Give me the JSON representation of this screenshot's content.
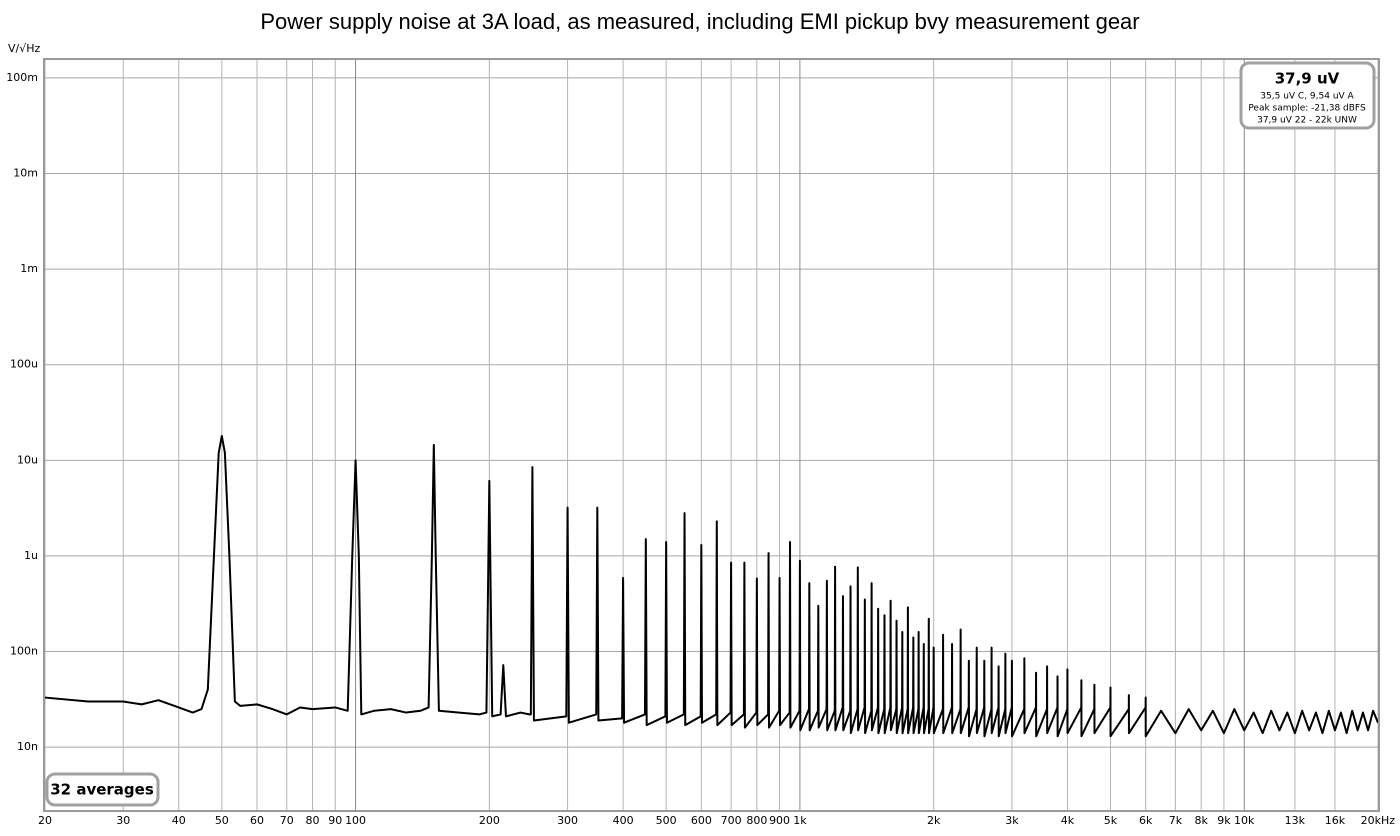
{
  "chart_data": {
    "type": "line",
    "title": "Power supply noise at 3A load, as measured, including EMI pickup bvy measurement gear",
    "y_unit": "V/√Hz",
    "xscale": "log",
    "yscale": "log",
    "grid": true,
    "xlim": [
      20,
      20000
    ],
    "ylim": [
      2.2e-09,
      0.154
    ],
    "xticks": [
      20,
      30,
      40,
      50,
      60,
      70,
      80,
      90,
      100,
      200,
      300,
      400,
      500,
      600,
      700,
      800,
      900,
      {
        "value": 1000,
        "label": "1k"
      },
      {
        "value": 2000,
        "label": "2k"
      },
      {
        "value": 3000,
        "label": "3k"
      },
      {
        "value": 4000,
        "label": "4k"
      },
      {
        "value": 5000,
        "label": "5k"
      },
      {
        "value": 6000,
        "label": "6k"
      },
      {
        "value": 7000,
        "label": "7k"
      },
      {
        "value": 8000,
        "label": "8k"
      },
      {
        "value": 9000,
        "label": "9k"
      },
      {
        "value": 10000,
        "label": "10k"
      },
      {
        "value": 13000,
        "label": "13k"
      },
      {
        "value": 16000,
        "label": "16k"
      },
      {
        "value": 20000,
        "label": "20kHz"
      }
    ],
    "yticks": [
      {
        "value": 1e-08,
        "label": "10n"
      },
      {
        "value": 1e-07,
        "label": "100n"
      },
      {
        "value": 1e-06,
        "label": "1u"
      },
      {
        "value": 1e-05,
        "label": "10u"
      },
      {
        "value": 0.0001,
        "label": "100u"
      },
      {
        "value": 0.001,
        "label": "1m"
      },
      {
        "value": 0.01,
        "label": "10m"
      },
      {
        "value": 0.1,
        "label": "100m"
      }
    ],
    "info_box": {
      "title": "37,9 uV",
      "lines": [
        "35,5 uV C, 9,54 uV A",
        "Peak sample: -21,38 dBFS",
        "37,9 uV 22 - 22k UNW"
      ]
    },
    "averages_label": "32 averages",
    "series": [
      {
        "color": "#000000",
        "x": [
          20,
          25,
          30,
          33,
          36,
          40,
          43,
          45,
          46.5,
          48,
          49.2,
          50,
          50.8,
          52,
          53.5,
          55,
          60,
          65,
          70,
          75,
          80,
          90,
          96,
          98.3,
          100,
          101.7,
          103,
          110,
          120,
          130,
          140,
          146,
          148.5,
          150,
          151.5,
          154,
          170,
          190,
          197,
          198.7,
          200,
          201.3,
          203,
          212,
          215,
          218,
          235,
          246,
          248,
          250,
          252,
          298,
          300,
          302,
          348,
          350,
          352,
          398,
          400,
          402,
          448,
          450,
          452,
          498,
          500,
          502,
          548,
          550,
          552,
          598,
          600,
          602,
          648,
          650,
          652,
          698,
          700,
          702,
          748,
          750,
          752,
          798,
          800,
          802,
          848,
          850,
          852,
          898,
          900,
          902,
          948,
          950,
          952,
          998,
          1000,
          1002,
          1048,
          1050,
          1052,
          1098,
          1100,
          1102,
          1148,
          1150,
          1152,
          1198,
          1200,
          1202,
          1248,
          1250,
          1252,
          1298,
          1300,
          1302,
          1348,
          1350,
          1352,
          1398,
          1400,
          1402,
          1448,
          1450,
          1452,
          1498,
          1500,
          1502,
          1548,
          1550,
          1552,
          1598,
          1600,
          1602,
          1648,
          1650,
          1652,
          1698,
          1700,
          1702,
          1748,
          1750,
          1752,
          1798,
          1800,
          1802,
          1848,
          1850,
          1852,
          1898,
          1900,
          1902,
          1948,
          1950,
          1952,
          1998,
          2000,
          2002,
          2098,
          2100,
          2102,
          2198,
          2200,
          2202,
          2298,
          2300,
          2302,
          2398,
          2400,
          2402,
          2498,
          2500,
          2502,
          2598,
          2600,
          2602,
          2698,
          2700,
          2702,
          2798,
          2800,
          2802,
          2898,
          2900,
          2902,
          2998,
          3000,
          3002,
          3198,
          3200,
          3202,
          3398,
          3400,
          3402,
          3598,
          3600,
          3602,
          3798,
          3800,
          3802,
          3998,
          4000,
          4002,
          4298,
          4300,
          4302,
          4598,
          4600,
          4602,
          4998,
          5000,
          5002,
          5498,
          5500,
          5502,
          5998,
          6000,
          6002,
          6500,
          7000,
          7500,
          8000,
          8500,
          9000,
          9500,
          10000,
          10500,
          11000,
          11500,
          12000,
          12500,
          13000,
          13500,
          14000,
          14500,
          15000,
          15500,
          16000,
          16500,
          17000,
          17500,
          18000,
          18500,
          19000,
          19500,
          20000
        ],
        "values": [
          3.3e-08,
          3e-08,
          3e-08,
          2.8e-08,
          3.1e-08,
          2.6e-08,
          2.3e-08,
          2.5e-08,
          4e-08,
          1e-06,
          1.2e-05,
          1.8e-05,
          1.2e-05,
          1e-06,
          3e-08,
          2.7e-08,
          2.8e-08,
          2.5e-08,
          2.2e-08,
          2.6e-08,
          2.5e-08,
          2.6e-08,
          2.4e-08,
          1e-06,
          1e-05,
          1e-06,
          2.2e-08,
          2.4e-08,
          2.5e-08,
          2.3e-08,
          2.4e-08,
          2.6e-08,
          1e-06,
          1.45e-05,
          1e-06,
          2.4e-08,
          2.3e-08,
          2.2e-08,
          2.3e-08,
          5e-07,
          6.1e-06,
          5e-07,
          2.1e-08,
          2.2e-08,
          7.2e-08,
          2.1e-08,
          2.3e-08,
          2.2e-08,
          2.2e-08,
          8.5e-06,
          1.9e-08,
          2.1e-08,
          3.2e-06,
          1.8e-08,
          2.2e-08,
          3.2e-06,
          1.9e-08,
          2e-08,
          5.9e-07,
          1.8e-08,
          2.2e-08,
          1.5e-06,
          1.7e-08,
          2.1e-08,
          1.4e-06,
          1.8e-08,
          2.2e-08,
          2.8e-06,
          1.7e-08,
          2.1e-08,
          1.3e-06,
          1.8e-08,
          2.2e-08,
          2.3e-06,
          1.7e-08,
          2.3e-08,
          8.5e-07,
          1.7e-08,
          2.2e-08,
          8.5e-07,
          1.6e-08,
          2.3e-08,
          5.8e-07,
          1.7e-08,
          2.2e-08,
          1.07e-06,
          1.6e-08,
          2.4e-08,
          5.9e-07,
          1.7e-08,
          2.3e-08,
          1.4e-06,
          1.6e-08,
          2.4e-08,
          8.9e-07,
          1.5e-08,
          2.5e-08,
          5.2e-07,
          1.5e-08,
          2.4e-08,
          3e-07,
          1.6e-08,
          2.5e-08,
          5.5e-07,
          1.5e-08,
          2.4e-08,
          7.7e-07,
          1.5e-08,
          2.6e-08,
          3.8e-07,
          1.5e-08,
          2.4e-08,
          4.8e-07,
          1.4e-08,
          2.5e-08,
          7.6e-07,
          1.5e-08,
          2.6e-08,
          3.5e-07,
          1.4e-08,
          2.4e-08,
          5.2e-07,
          1.5e-08,
          2.6e-08,
          2.8e-07,
          1.4e-08,
          2.5e-08,
          2.4e-07,
          1.4e-08,
          2.6e-08,
          3.4e-07,
          1.5e-08,
          2.5e-08,
          2.1e-07,
          1.4e-08,
          2.6e-08,
          1.6e-07,
          1.4e-08,
          2.5e-08,
          2.9e-07,
          1.4e-08,
          2.6e-08,
          1.4e-07,
          1.4e-08,
          2.5e-08,
          1.6e-07,
          1.4e-08,
          2.6e-08,
          1.2e-07,
          1.4e-08,
          2.5e-08,
          2.2e-07,
          1.4e-08,
          2.6e-08,
          1.1e-07,
          1.4e-08,
          2.5e-08,
          1.5e-07,
          1.4e-08,
          2.6e-08,
          1.2e-07,
          1.4e-08,
          2.5e-08,
          1.7e-07,
          1.4e-08,
          2.6e-08,
          8e-08,
          1.3e-08,
          2.5e-08,
          1.1e-07,
          1.4e-08,
          2.6e-08,
          8e-08,
          1.3e-08,
          2.5e-08,
          1.1e-07,
          1.4e-08,
          2.6e-08,
          7e-08,
          1.3e-08,
          2.5e-08,
          9.5e-08,
          1.4e-08,
          2.6e-08,
          8e-08,
          1.3e-08,
          2.5e-08,
          8.5e-08,
          1.4e-08,
          2.6e-08,
          6e-08,
          1.3e-08,
          2.5e-08,
          7e-08,
          1.4e-08,
          2.6e-08,
          5.5e-08,
          1.3e-08,
          2.5e-08,
          6.5e-08,
          1.4e-08,
          2.6e-08,
          5e-08,
          1.3e-08,
          2.5e-08,
          4.5e-08,
          1.4e-08,
          2.6e-08,
          4.2e-08,
          1.3e-08,
          2.5e-08,
          3.5e-08,
          1.4e-08,
          2.6e-08,
          3.3e-08,
          1.3e-08,
          2.4e-08,
          1.4e-08,
          2.5e-08,
          1.5e-08,
          2.4e-08,
          1.4e-08,
          2.5e-08,
          1.5e-08,
          2.3e-08,
          1.4e-08,
          2.4e-08,
          1.5e-08,
          2.3e-08,
          1.4e-08,
          2.4e-08,
          1.5e-08,
          2.3e-08,
          1.4e-08,
          2.4e-08,
          1.5e-08,
          2.3e-08,
          1.4e-08,
          2.4e-08,
          1.5e-08,
          2.3e-08,
          1.5e-08,
          2.4e-08,
          1.8e-08
        ]
      }
    ]
  }
}
